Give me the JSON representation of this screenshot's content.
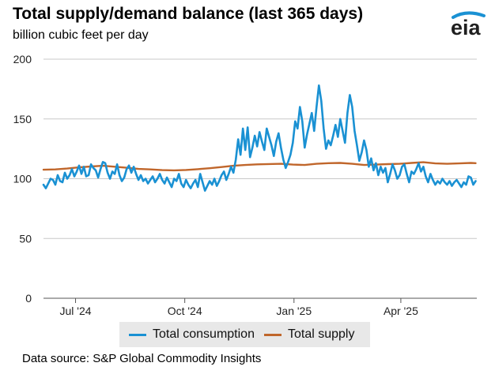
{
  "header": {
    "title": "Total supply/demand balance (last 365 days)",
    "subtitle": "billion cubic feet per day",
    "logo": "eia"
  },
  "footer": {
    "source": "Data source: S&P Global Commodity Insights"
  },
  "colors": {
    "consumption": "#1a91d3",
    "supply": "#c0662b",
    "grid": "#c8c8c8",
    "legend_bg": "#e8e8e8"
  },
  "chart_data": {
    "type": "line",
    "title": "Total supply/demand balance (last 365 days)",
    "ylabel": "billion cubic feet per day",
    "ylim": [
      0,
      200
    ],
    "yticks": [
      0,
      50,
      100,
      150,
      200
    ],
    "xlim": [
      "2024-06-04",
      "2025-06-04"
    ],
    "xticks": [
      {
        "date": "2024-07-01",
        "label": "Jul '24"
      },
      {
        "date": "2024-10-01",
        "label": "Oct '24"
      },
      {
        "date": "2025-01-01",
        "label": "Jan '25"
      },
      {
        "date": "2025-04-01",
        "label": "Apr '25"
      }
    ],
    "grid": true,
    "legend_position": "bottom",
    "series": [
      {
        "name": "Total consumption",
        "color": "#1a91d3",
        "points": [
          [
            "2024-06-04",
            95
          ],
          [
            "2024-06-06",
            92
          ],
          [
            "2024-06-08",
            96
          ],
          [
            "2024-06-10",
            100
          ],
          [
            "2024-06-12",
            99
          ],
          [
            "2024-06-14",
            95
          ],
          [
            "2024-06-16",
            103
          ],
          [
            "2024-06-18",
            98
          ],
          [
            "2024-06-20",
            97
          ],
          [
            "2024-06-22",
            105
          ],
          [
            "2024-06-24",
            100
          ],
          [
            "2024-06-26",
            103
          ],
          [
            "2024-06-28",
            108
          ],
          [
            "2024-06-30",
            102
          ],
          [
            "2024-07-02",
            106
          ],
          [
            "2024-07-04",
            111
          ],
          [
            "2024-07-06",
            104
          ],
          [
            "2024-07-08",
            110
          ],
          [
            "2024-07-10",
            102
          ],
          [
            "2024-07-12",
            103
          ],
          [
            "2024-07-14",
            112
          ],
          [
            "2024-07-16",
            109
          ],
          [
            "2024-07-18",
            107
          ],
          [
            "2024-07-20",
            101
          ],
          [
            "2024-07-22",
            108
          ],
          [
            "2024-07-24",
            114
          ],
          [
            "2024-07-26",
            113
          ],
          [
            "2024-07-28",
            105
          ],
          [
            "2024-07-30",
            100
          ],
          [
            "2024-08-01",
            106
          ],
          [
            "2024-08-03",
            104
          ],
          [
            "2024-08-05",
            112
          ],
          [
            "2024-08-07",
            103
          ],
          [
            "2024-08-09",
            98
          ],
          [
            "2024-08-11",
            101
          ],
          [
            "2024-08-13",
            108
          ],
          [
            "2024-08-15",
            111
          ],
          [
            "2024-08-17",
            105
          ],
          [
            "2024-08-19",
            110
          ],
          [
            "2024-08-21",
            104
          ],
          [
            "2024-08-23",
            99
          ],
          [
            "2024-08-25",
            103
          ],
          [
            "2024-08-27",
            98
          ],
          [
            "2024-08-29",
            100
          ],
          [
            "2024-08-31",
            96
          ],
          [
            "2024-09-02",
            99
          ],
          [
            "2024-09-04",
            102
          ],
          [
            "2024-09-06",
            97
          ],
          [
            "2024-09-08",
            100
          ],
          [
            "2024-09-10",
            104
          ],
          [
            "2024-09-12",
            99
          ],
          [
            "2024-09-14",
            96
          ],
          [
            "2024-09-16",
            101
          ],
          [
            "2024-09-18",
            97
          ],
          [
            "2024-09-20",
            93
          ],
          [
            "2024-09-22",
            100
          ],
          [
            "2024-09-24",
            98
          ],
          [
            "2024-09-26",
            104
          ],
          [
            "2024-09-28",
            96
          ],
          [
            "2024-09-30",
            93
          ],
          [
            "2024-10-02",
            99
          ],
          [
            "2024-10-04",
            95
          ],
          [
            "2024-10-06",
            92
          ],
          [
            "2024-10-08",
            96
          ],
          [
            "2024-10-10",
            99
          ],
          [
            "2024-10-12",
            93
          ],
          [
            "2024-10-14",
            104
          ],
          [
            "2024-10-16",
            97
          ],
          [
            "2024-10-18",
            90
          ],
          [
            "2024-10-20",
            94
          ],
          [
            "2024-10-22",
            98
          ],
          [
            "2024-10-24",
            95
          ],
          [
            "2024-10-26",
            100
          ],
          [
            "2024-10-28",
            94
          ],
          [
            "2024-10-30",
            98
          ],
          [
            "2024-11-01",
            103
          ],
          [
            "2024-11-03",
            106
          ],
          [
            "2024-11-05",
            99
          ],
          [
            "2024-11-07",
            104
          ],
          [
            "2024-11-09",
            110
          ],
          [
            "2024-11-11",
            105
          ],
          [
            "2024-11-13",
            116
          ],
          [
            "2024-11-15",
            133
          ],
          [
            "2024-11-17",
            120
          ],
          [
            "2024-11-19",
            142
          ],
          [
            "2024-11-21",
            124
          ],
          [
            "2024-11-23",
            143
          ],
          [
            "2024-11-25",
            118
          ],
          [
            "2024-11-27",
            126
          ],
          [
            "2024-11-29",
            136
          ],
          [
            "2024-12-01",
            127
          ],
          [
            "2024-12-03",
            139
          ],
          [
            "2024-12-05",
            131
          ],
          [
            "2024-12-07",
            124
          ],
          [
            "2024-12-09",
            142
          ],
          [
            "2024-12-11",
            135
          ],
          [
            "2024-12-13",
            128
          ],
          [
            "2024-12-15",
            119
          ],
          [
            "2024-12-17",
            131
          ],
          [
            "2024-12-19",
            138
          ],
          [
            "2024-12-21",
            126
          ],
          [
            "2024-12-23",
            116
          ],
          [
            "2024-12-25",
            109
          ],
          [
            "2024-12-27",
            114
          ],
          [
            "2024-12-29",
            120
          ],
          [
            "2024-12-31",
            130
          ],
          [
            "2025-01-02",
            148
          ],
          [
            "2025-01-04",
            142
          ],
          [
            "2025-01-06",
            160
          ],
          [
            "2025-01-08",
            148
          ],
          [
            "2025-01-10",
            126
          ],
          [
            "2025-01-12",
            137
          ],
          [
            "2025-01-14",
            146
          ],
          [
            "2025-01-16",
            155
          ],
          [
            "2025-01-18",
            140
          ],
          [
            "2025-01-20",
            160
          ],
          [
            "2025-01-22",
            178
          ],
          [
            "2025-01-24",
            165
          ],
          [
            "2025-01-26",
            142
          ],
          [
            "2025-01-28",
            125
          ],
          [
            "2025-01-30",
            132
          ],
          [
            "2025-02-01",
            128
          ],
          [
            "2025-02-03",
            136
          ],
          [
            "2025-02-05",
            145
          ],
          [
            "2025-02-07",
            135
          ],
          [
            "2025-02-09",
            150
          ],
          [
            "2025-02-11",
            140
          ],
          [
            "2025-02-13",
            130
          ],
          [
            "2025-02-15",
            155
          ],
          [
            "2025-02-17",
            170
          ],
          [
            "2025-02-19",
            160
          ],
          [
            "2025-02-21",
            140
          ],
          [
            "2025-02-23",
            128
          ],
          [
            "2025-02-25",
            115
          ],
          [
            "2025-02-27",
            122
          ],
          [
            "2025-03-01",
            132
          ],
          [
            "2025-03-03",
            124
          ],
          [
            "2025-03-05",
            110
          ],
          [
            "2025-03-07",
            117
          ],
          [
            "2025-03-09",
            107
          ],
          [
            "2025-03-11",
            113
          ],
          [
            "2025-03-13",
            103
          ],
          [
            "2025-03-15",
            110
          ],
          [
            "2025-03-17",
            105
          ],
          [
            "2025-03-19",
            109
          ],
          [
            "2025-03-21",
            97
          ],
          [
            "2025-03-23",
            104
          ],
          [
            "2025-03-25",
            112
          ],
          [
            "2025-03-27",
            107
          ],
          [
            "2025-03-29",
            100
          ],
          [
            "2025-03-31",
            103
          ],
          [
            "2025-04-02",
            110
          ],
          [
            "2025-04-04",
            112
          ],
          [
            "2025-04-06",
            104
          ],
          [
            "2025-04-08",
            97
          ],
          [
            "2025-04-10",
            106
          ],
          [
            "2025-04-12",
            104
          ],
          [
            "2025-04-14",
            108
          ],
          [
            "2025-04-16",
            113
          ],
          [
            "2025-04-18",
            106
          ],
          [
            "2025-04-20",
            110
          ],
          [
            "2025-04-22",
            102
          ],
          [
            "2025-04-24",
            97
          ],
          [
            "2025-04-26",
            104
          ],
          [
            "2025-04-28",
            99
          ],
          [
            "2025-04-30",
            95
          ],
          [
            "2025-05-02",
            98
          ],
          [
            "2025-05-04",
            96
          ],
          [
            "2025-05-06",
            100
          ],
          [
            "2025-05-08",
            97
          ],
          [
            "2025-05-10",
            95
          ],
          [
            "2025-05-12",
            98
          ],
          [
            "2025-05-14",
            94
          ],
          [
            "2025-05-16",
            97
          ],
          [
            "2025-05-18",
            99
          ],
          [
            "2025-05-20",
            96
          ],
          [
            "2025-05-22",
            93
          ],
          [
            "2025-05-24",
            97
          ],
          [
            "2025-05-26",
            95
          ],
          [
            "2025-05-28",
            102
          ],
          [
            "2025-05-30",
            101
          ],
          [
            "2025-06-01",
            95
          ],
          [
            "2025-06-03",
            98
          ]
        ]
      },
      {
        "name": "Total supply",
        "color": "#c0662b",
        "points": [
          [
            "2024-06-04",
            107.5
          ],
          [
            "2024-06-14",
            107.8
          ],
          [
            "2024-06-24",
            108.5
          ],
          [
            "2024-07-04",
            109.5
          ],
          [
            "2024-07-14",
            110.2
          ],
          [
            "2024-07-24",
            110.8
          ],
          [
            "2024-08-03",
            110.0
          ],
          [
            "2024-08-13",
            109.2
          ],
          [
            "2024-08-23",
            108.2
          ],
          [
            "2024-09-02",
            107.8
          ],
          [
            "2024-09-12",
            107.2
          ],
          [
            "2024-09-22",
            107.0
          ],
          [
            "2024-10-02",
            107.3
          ],
          [
            "2024-10-12",
            108.0
          ],
          [
            "2024-10-22",
            108.8
          ],
          [
            "2024-11-01",
            109.8
          ],
          [
            "2024-11-11",
            110.8
          ],
          [
            "2024-11-21",
            111.5
          ],
          [
            "2024-12-01",
            112.0
          ],
          [
            "2024-12-11",
            112.3
          ],
          [
            "2024-12-21",
            112.5
          ],
          [
            "2024-12-31",
            111.8
          ],
          [
            "2025-01-10",
            111.5
          ],
          [
            "2025-01-20",
            112.5
          ],
          [
            "2025-01-30",
            113.0
          ],
          [
            "2025-02-09",
            113.2
          ],
          [
            "2025-02-19",
            112.5
          ],
          [
            "2025-03-01",
            111.5
          ],
          [
            "2025-03-11",
            111.8
          ],
          [
            "2025-03-21",
            112.2
          ],
          [
            "2025-03-31",
            112.5
          ],
          [
            "2025-04-10",
            113.2
          ],
          [
            "2025-04-20",
            113.8
          ],
          [
            "2025-04-30",
            112.8
          ],
          [
            "2025-05-10",
            112.5
          ],
          [
            "2025-05-20",
            112.8
          ],
          [
            "2025-05-30",
            113.2
          ],
          [
            "2025-06-03",
            113.0
          ]
        ]
      }
    ]
  }
}
